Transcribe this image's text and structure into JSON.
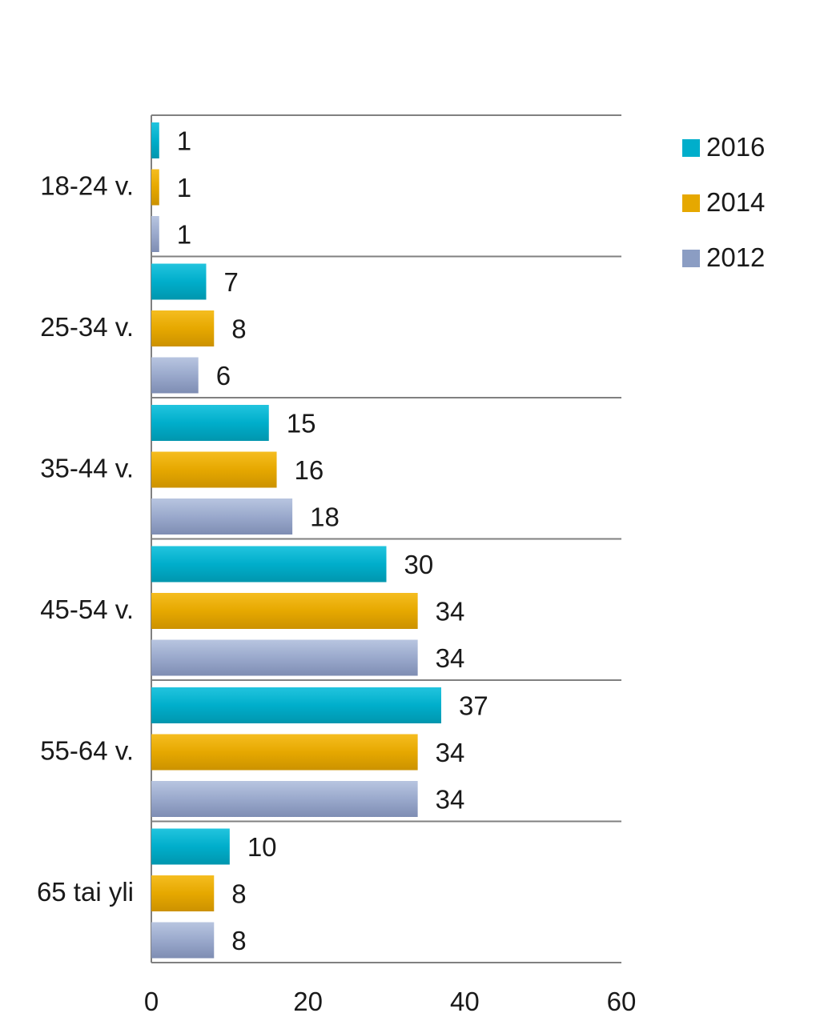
{
  "chart_data": {
    "type": "bar",
    "orientation": "horizontal",
    "categories": [
      "18-24 v.",
      "25-34 v.",
      "35-44 v.",
      "45-54 v.",
      "55-64 v.",
      "65 tai yli"
    ],
    "series": [
      {
        "name": "2016",
        "color": "#00AECB",
        "values": [
          1,
          7,
          15,
          30,
          37,
          10
        ]
      },
      {
        "name": "2014",
        "color": "#E6A800",
        "values": [
          1,
          8,
          16,
          34,
          34,
          8
        ]
      },
      {
        "name": "2012",
        "color": "#8B9DC3",
        "values": [
          1,
          6,
          18,
          34,
          34,
          8
        ]
      }
    ],
    "xlim": [
      0,
      60
    ],
    "xticks": [
      0,
      20,
      40,
      60
    ],
    "legend_position": "top-right",
    "grid": "horizontal category separators"
  }
}
